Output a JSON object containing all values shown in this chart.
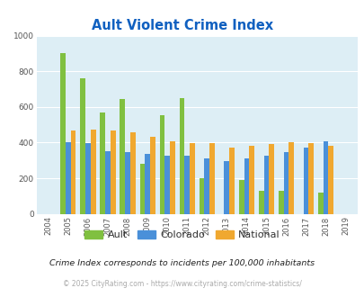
{
  "title": "Ault Violent Crime Index",
  "years": [
    2004,
    2005,
    2006,
    2007,
    2008,
    2009,
    2010,
    2011,
    2012,
    2013,
    2014,
    2015,
    2016,
    2017,
    2018,
    2019
  ],
  "ault": [
    0,
    900,
    760,
    570,
    645,
    280,
    555,
    648,
    200,
    0,
    190,
    128,
    128,
    0,
    120,
    0
  ],
  "colorado": [
    0,
    400,
    398,
    350,
    345,
    338,
    325,
    325,
    310,
    298,
    312,
    325,
    348,
    372,
    405,
    0
  ],
  "national": [
    0,
    468,
    475,
    468,
    458,
    432,
    408,
    395,
    395,
    370,
    380,
    393,
    400,
    397,
    381,
    0
  ],
  "ault_color": "#80c040",
  "colorado_color": "#4a90d9",
  "national_color": "#f0a830",
  "bg_color": "#ddeef5",
  "title_color": "#1060c0",
  "ylim": [
    0,
    1000
  ],
  "footnote1": "Crime Index corresponds to incidents per 100,000 inhabitants",
  "footnote2": "© 2025 CityRating.com - https://www.cityrating.com/crime-statistics/",
  "legend_labels": [
    "Ault",
    "Colorado",
    "National"
  ]
}
